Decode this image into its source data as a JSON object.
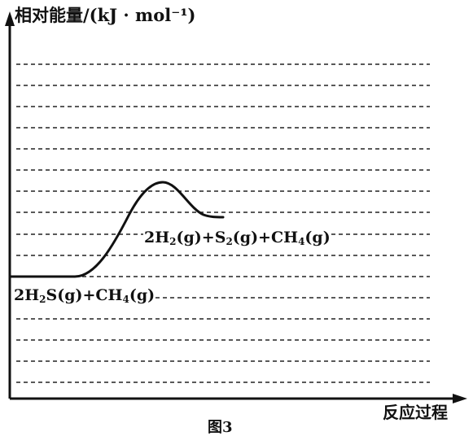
{
  "title": "",
  "y_axis_label": "相对能量/(kJ · mol⁻¹)",
  "x_axis_label": "反应过程",
  "caption": "图3",
  "reactant": {
    "parts": [
      "2H",
      "2",
      "S(g)+CH",
      "4",
      "(g)"
    ]
  },
  "product": {
    "parts": [
      "2H",
      "2",
      "(g)+S",
      "2",
      "(g)+CH",
      "4",
      "(g)"
    ]
  },
  "guide_lines": 16,
  "colors": {
    "ink": "#111111",
    "background": "#ffffff"
  }
}
